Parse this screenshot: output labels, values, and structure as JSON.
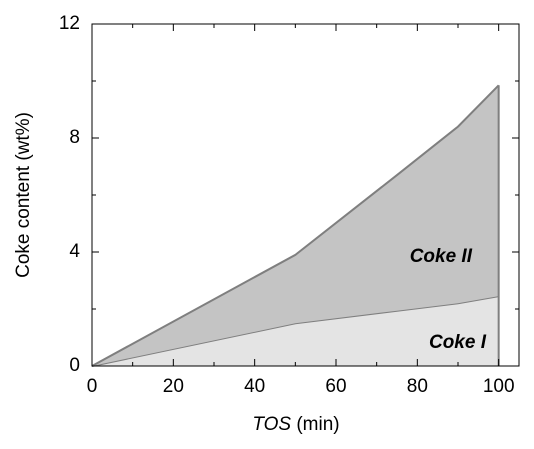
{
  "chart_data": {
    "type": "stacked_area",
    "x_label": {
      "variable": "TOS",
      "unit": "(min)"
    },
    "y_label": "Coke content (wt%)",
    "x": [
      0,
      50,
      75,
      90,
      100
    ],
    "series": [
      {
        "name": "Coke I",
        "color": "#e4e4e4",
        "label_color": "#777777",
        "values": [
          0,
          1.5,
          1.94,
          2.2,
          2.45
        ]
      },
      {
        "name": "Coke II",
        "color": "#c4c4c4",
        "label_color": "#000000",
        "values": [
          0,
          2.4,
          4.76,
          6.2,
          7.4
        ]
      }
    ],
    "line_color": "#7f7f7f",
    "xlim": [
      0,
      105
    ],
    "ylim": [
      0,
      12
    ],
    "xticks": [
      0,
      20,
      40,
      60,
      80,
      100
    ],
    "yticks": [
      0,
      4,
      8,
      12
    ],
    "xticks_minor": [
      10,
      30,
      50,
      70,
      90
    ],
    "yticks_minor": [
      2,
      6,
      10
    ]
  }
}
